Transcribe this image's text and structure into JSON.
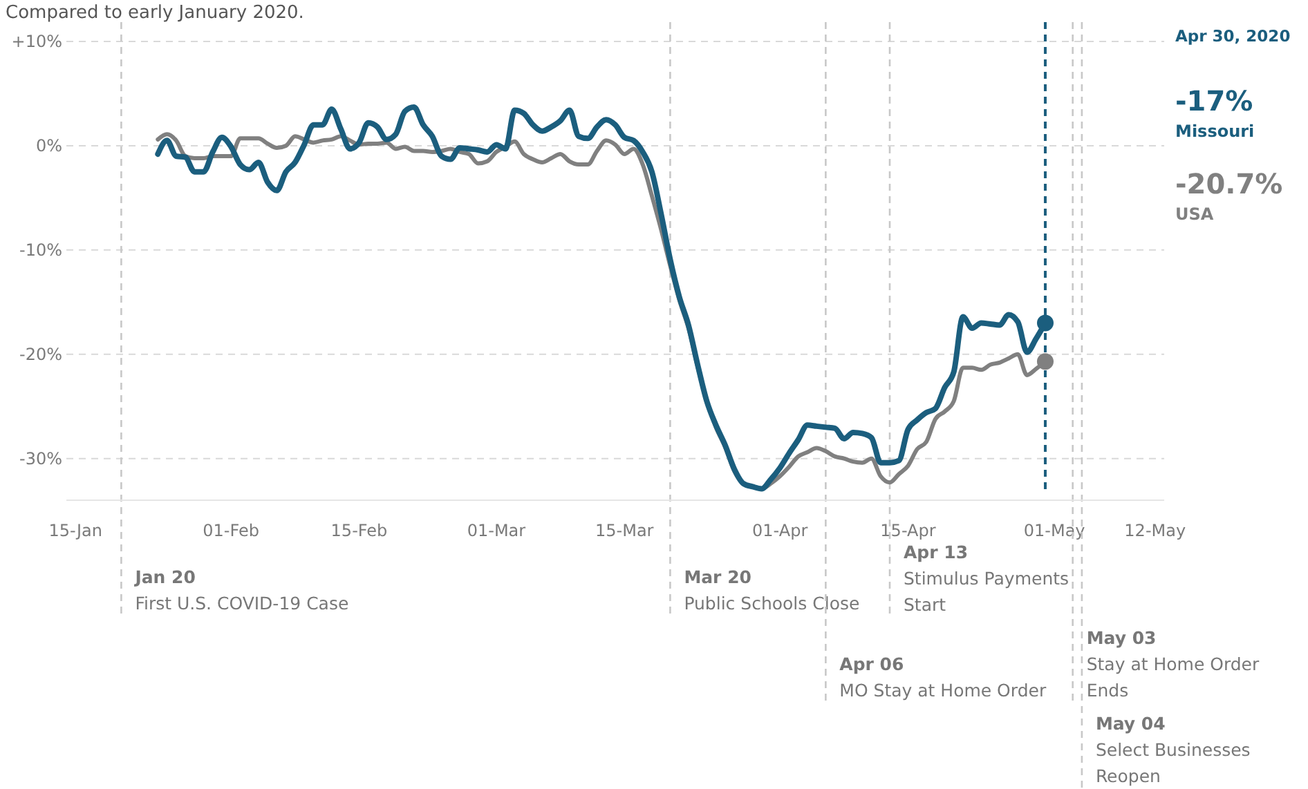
{
  "chart_data": {
    "type": "line",
    "subtitle": "Compared to early January 2020.",
    "x": [
      "2020-01-24",
      "2020-01-25",
      "2020-01-26",
      "2020-01-27",
      "2020-01-28",
      "2020-01-29",
      "2020-01-30",
      "2020-01-31",
      "2020-02-01",
      "2020-02-02",
      "2020-02-03",
      "2020-02-04",
      "2020-02-05",
      "2020-02-06",
      "2020-02-07",
      "2020-02-08",
      "2020-02-09",
      "2020-02-10",
      "2020-02-11",
      "2020-02-12",
      "2020-02-13",
      "2020-02-14",
      "2020-02-15",
      "2020-02-16",
      "2020-02-17",
      "2020-02-18",
      "2020-02-19",
      "2020-02-20",
      "2020-02-21",
      "2020-02-22",
      "2020-02-23",
      "2020-02-24",
      "2020-02-25",
      "2020-02-26",
      "2020-02-27",
      "2020-02-28",
      "2020-02-29",
      "2020-03-01",
      "2020-03-02",
      "2020-03-03",
      "2020-03-04",
      "2020-03-05",
      "2020-03-06",
      "2020-03-07",
      "2020-03-08",
      "2020-03-09",
      "2020-03-10",
      "2020-03-11",
      "2020-03-12",
      "2020-03-13",
      "2020-03-14",
      "2020-03-15",
      "2020-03-16",
      "2020-03-17",
      "2020-03-18",
      "2020-03-19",
      "2020-03-20",
      "2020-03-21",
      "2020-03-22",
      "2020-03-23",
      "2020-03-24",
      "2020-03-25",
      "2020-03-26",
      "2020-03-27",
      "2020-03-28",
      "2020-03-29",
      "2020-03-30",
      "2020-03-31",
      "2020-04-01",
      "2020-04-02",
      "2020-04-03",
      "2020-04-04",
      "2020-04-05",
      "2020-04-06",
      "2020-04-07",
      "2020-04-08",
      "2020-04-09",
      "2020-04-10",
      "2020-04-11",
      "2020-04-12",
      "2020-04-13",
      "2020-04-14",
      "2020-04-15",
      "2020-04-16",
      "2020-04-17",
      "2020-04-18",
      "2020-04-19",
      "2020-04-20",
      "2020-04-21",
      "2020-04-22",
      "2020-04-23",
      "2020-04-24",
      "2020-04-25",
      "2020-04-26",
      "2020-04-27",
      "2020-04-28",
      "2020-04-29",
      "2020-04-30"
    ],
    "series": [
      {
        "name": "USA",
        "color": "#808080",
        "values": [
          0.6,
          1.1,
          0.5,
          -1.0,
          -1.2,
          -1.2,
          -1.0,
          -1.0,
          -1.0,
          0.7,
          0.7,
          0.7,
          0.2,
          -0.2,
          0.0,
          0.9,
          0.6,
          0.3,
          0.5,
          0.6,
          0.9,
          0.5,
          0.1,
          0.2,
          0.2,
          0.3,
          -0.3,
          -0.1,
          -0.5,
          -0.5,
          -0.6,
          -0.5,
          -0.3,
          -0.6,
          -0.8,
          -1.7,
          -1.5,
          -0.6,
          -0.1,
          0.4,
          -0.8,
          -1.3,
          -1.6,
          -1.2,
          -0.8,
          -1.5,
          -1.8,
          -1.8,
          -0.5,
          0.5,
          0.1,
          -0.8,
          -0.3,
          -1.8,
          -4.8,
          -8.0,
          -11.5,
          -14.8,
          -17.5,
          -21.2,
          -24.5,
          -27.0,
          -28.9,
          -31.2,
          -32.4,
          -32.7,
          -32.9,
          -32.4,
          -31.7,
          -30.8,
          -29.8,
          -29.4,
          -29.0,
          -29.3,
          -29.8,
          -30.0,
          -30.3,
          -30.4,
          -30.0,
          -31.7,
          -32.3,
          -31.5,
          -30.7,
          -29.1,
          -28.4,
          -26.2,
          -25.5,
          -24.5,
          -21.3,
          -21.3,
          -21.5,
          -21.0,
          -20.8,
          -20.4,
          -20.0,
          -22.0,
          -21.4,
          -20.7
        ]
      },
      {
        "name": "Missouri",
        "color": "#1b5e7e",
        "values": [
          -0.8,
          0.5,
          -1.0,
          -1.1,
          -2.5,
          -2.5,
          -0.6,
          0.8,
          -0.1,
          -1.8,
          -2.3,
          -1.6,
          -3.5,
          -4.3,
          -2.5,
          -1.6,
          0.1,
          2.0,
          2.0,
          3.5,
          1.6,
          -0.3,
          0.3,
          2.2,
          1.8,
          0.6,
          1.1,
          3.3,
          3.7,
          2.0,
          0.9,
          -1.0,
          -1.3,
          -0.2,
          -0.3,
          -0.4,
          -0.6,
          0.1,
          -0.3,
          3.4,
          3.1,
          2.0,
          1.4,
          1.8,
          2.4,
          3.4,
          0.9,
          0.7,
          1.8,
          2.5,
          2.0,
          0.8,
          0.5,
          -0.6,
          -2.5,
          -6.5,
          -10.9,
          -14.5,
          -17.2,
          -21.0,
          -24.5,
          -26.8,
          -28.7,
          -31.0,
          -32.4,
          -32.7,
          -32.9,
          -32.0,
          -30.9,
          -29.5,
          -28.2,
          -26.8,
          -26.9,
          -27.0,
          -27.1,
          -28.1,
          -27.5,
          -27.6,
          -28.0,
          -30.4,
          -30.4,
          -30.2,
          -27.2,
          -26.3,
          -25.6,
          -25.2,
          -23.2,
          -21.7,
          -16.4,
          -17.5,
          -17.0,
          -17.1,
          -17.2,
          -16.2,
          -16.9,
          -19.8,
          -18.5,
          -17.0
        ]
      }
    ],
    "annotations": [
      "-20.7%",
      "-17%"
    ],
    "xlim": [
      "2020-01-14",
      "2020-05-13"
    ],
    "xticks": [
      {
        "value": "2020-01-15",
        "label": "15-Jan"
      },
      {
        "value": "2020-02-01",
        "label": "01-Feb"
      },
      {
        "value": "2020-02-15",
        "label": "15-Feb"
      },
      {
        "value": "2020-03-01",
        "label": "01-Mar"
      },
      {
        "value": "2020-03-15",
        "label": "15-Mar"
      },
      {
        "value": "2020-04-01",
        "label": "01-Apr"
      },
      {
        "value": "2020-04-15",
        "label": "15-Apr"
      },
      {
        "value": "2020-05-01",
        "label": "01-May"
      },
      {
        "value": "2020-05-12",
        "label": "12-May"
      }
    ],
    "ylim": [
      -34,
      10
    ],
    "yticks": [
      {
        "value": 10,
        "label": "+10%"
      },
      {
        "value": 0,
        "label": "0%"
      },
      {
        "value": -10,
        "label": "-10%"
      },
      {
        "value": -20,
        "label": "-20%"
      },
      {
        "value": -30,
        "label": "-30%"
      }
    ],
    "ref_lines": [
      {
        "axis": "x",
        "value": "2020-01-20",
        "label": "Jan 20\nFirst U.S. COVID-19 Case",
        "color": "#c8c8c8",
        "line_style": "dashed"
      },
      {
        "axis": "x",
        "value": "2020-03-20",
        "label": "Mar 20\nPublic Schools Close",
        "color": "#c8c8c8",
        "line_style": "dashed"
      },
      {
        "axis": "x",
        "value": "2020-04-06",
        "label": "Apr 06\nMO Stay at Home Order",
        "color": "#c8c8c8",
        "line_style": "dashed"
      },
      {
        "axis": "x",
        "value": "2020-04-13",
        "label": "Apr 13\nStimulus Payments\nStart",
        "color": "#c8c8c8",
        "line_style": "dashed"
      },
      {
        "axis": "x",
        "value": "2020-05-03",
        "label": "May 03\nStay at Home Order\nEnds",
        "color": "#c8c8c8",
        "line_style": "dashed"
      },
      {
        "axis": "x",
        "value": "2020-05-04",
        "label": "May 04\nSelect Businesses\nReopen",
        "color": "#c8c8c8",
        "line_style": "dashed"
      },
      {
        "axis": "x",
        "value": "2020-04-30",
        "label": "Apr 30, 2020",
        "color": "#1b5e7e",
        "line_style": "dashed"
      }
    ],
    "grid": "y",
    "legend": false,
    "line_style": "solid",
    "marker": "none"
  }
}
